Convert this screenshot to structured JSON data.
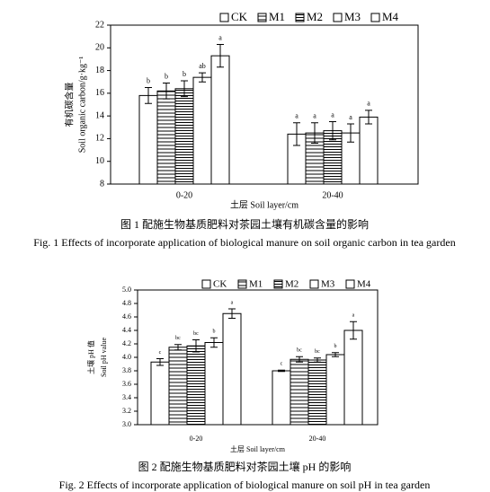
{
  "chart_data": [
    {
      "type": "bar",
      "ylabel_cn": "有机碳含量",
      "ylabel_en": "Soil organic carbon/g·kg⁻¹",
      "xlabel": "土层  Soil layer/cm",
      "caption_cn": "图 1  配施生物基质肥料对茶园土壤有机碳含量的影响",
      "caption_en": "Fig. 1 Effects of incorporate application of biological manure on soil organic carbon in tea garden",
      "categories": [
        "0-20",
        "20-40"
      ],
      "series": [
        {
          "name": "CK",
          "color": "#ffffff",
          "values": [
            15.8,
            12.4
          ],
          "errors": [
            0.7,
            1.0
          ],
          "labels": [
            "b",
            "a"
          ]
        },
        {
          "name": "M1",
          "color": "#ffffff",
          "hatch": "horizontal",
          "values": [
            16.2,
            12.5
          ],
          "errors": [
            0.7,
            0.9
          ],
          "labels": [
            "b",
            "a"
          ]
        },
        {
          "name": "M2",
          "color": "#ffffff",
          "hatch": "dense",
          "values": [
            16.4,
            12.7
          ],
          "errors": [
            0.7,
            0.8
          ],
          "labels": [
            "b",
            "a"
          ]
        },
        {
          "name": "M3",
          "color": "#ffffff",
          "values": [
            17.4,
            12.5
          ],
          "errors": [
            0.4,
            0.8
          ],
          "labels": [
            "ab",
            "a"
          ]
        },
        {
          "name": "M4",
          "color": "#ffffff",
          "values": [
            19.3,
            13.9
          ],
          "errors": [
            1.0,
            0.6
          ],
          "labels": [
            "a",
            "a"
          ]
        }
      ],
      "ylim": [
        8,
        22
      ],
      "yticks": [
        8,
        10,
        12,
        14,
        16,
        18,
        20,
        22
      ]
    },
    {
      "type": "bar",
      "ylabel_cn": "土壤 pH 值",
      "ylabel_en": "Soil pH value",
      "xlabel": "土层  Soil layer/cm",
      "caption_cn": "图 2  配施生物基质肥料对茶园土壤 pH 的影响",
      "caption_en": "Fig. 2 Effects of incorporate application of biological manure on soil pH in tea garden",
      "categories": [
        "0-20",
        "20-40"
      ],
      "series": [
        {
          "name": "CK",
          "color": "#ffffff",
          "values": [
            3.93,
            3.8
          ],
          "errors": [
            0.05,
            0.01
          ],
          "labels": [
            "c",
            "c"
          ]
        },
        {
          "name": "M1",
          "color": "#ffffff",
          "hatch": "horizontal",
          "values": [
            4.15,
            3.97
          ],
          "errors": [
            0.04,
            0.04
          ],
          "labels": [
            "bc",
            "bc"
          ]
        },
        {
          "name": "M2",
          "color": "#ffffff",
          "hatch": "dense",
          "values": [
            4.17,
            3.96
          ],
          "errors": [
            0.09,
            0.03
          ],
          "labels": [
            "bc",
            "bc"
          ]
        },
        {
          "name": "M3",
          "color": "#ffffff",
          "values": [
            4.22,
            4.04
          ],
          "errors": [
            0.07,
            0.03
          ],
          "labels": [
            "b",
            "b"
          ]
        },
        {
          "name": "M4",
          "color": "#ffffff",
          "values": [
            4.65,
            4.4
          ],
          "errors": [
            0.07,
            0.13
          ],
          "labels": [
            "a",
            "a"
          ]
        }
      ],
      "ylim": [
        3,
        5
      ],
      "yticks": [
        {
          "value": 3,
          "label": "3.0"
        },
        3.2,
        3.4,
        3.6,
        3.8,
        {
          "value": 4,
          "label": "4.0"
        },
        4.2,
        4.4,
        4.6,
        4.8,
        {
          "value": 5,
          "label": "5.0"
        }
      ]
    }
  ]
}
